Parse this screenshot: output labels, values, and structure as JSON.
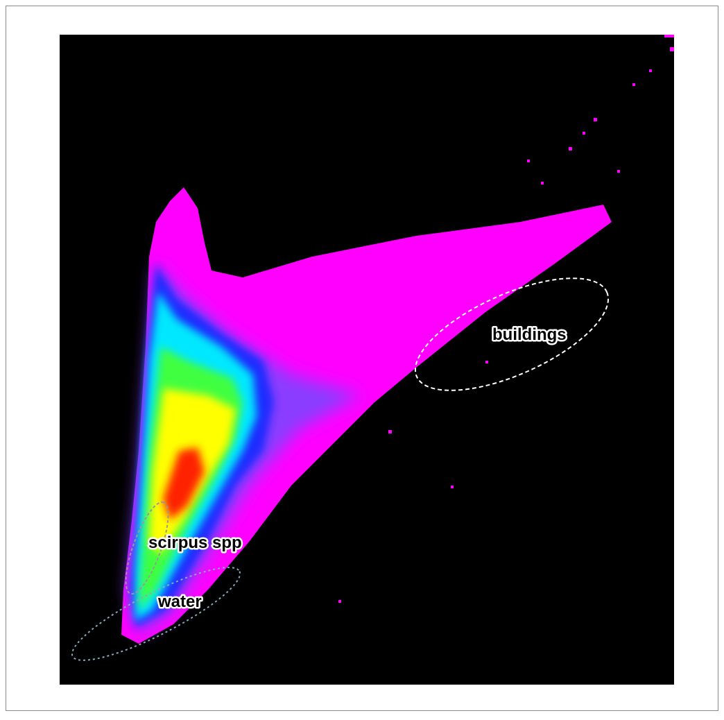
{
  "labels": {
    "buildings": "buildings",
    "scirpus": "scirpus spp",
    "water": "water"
  }
}
